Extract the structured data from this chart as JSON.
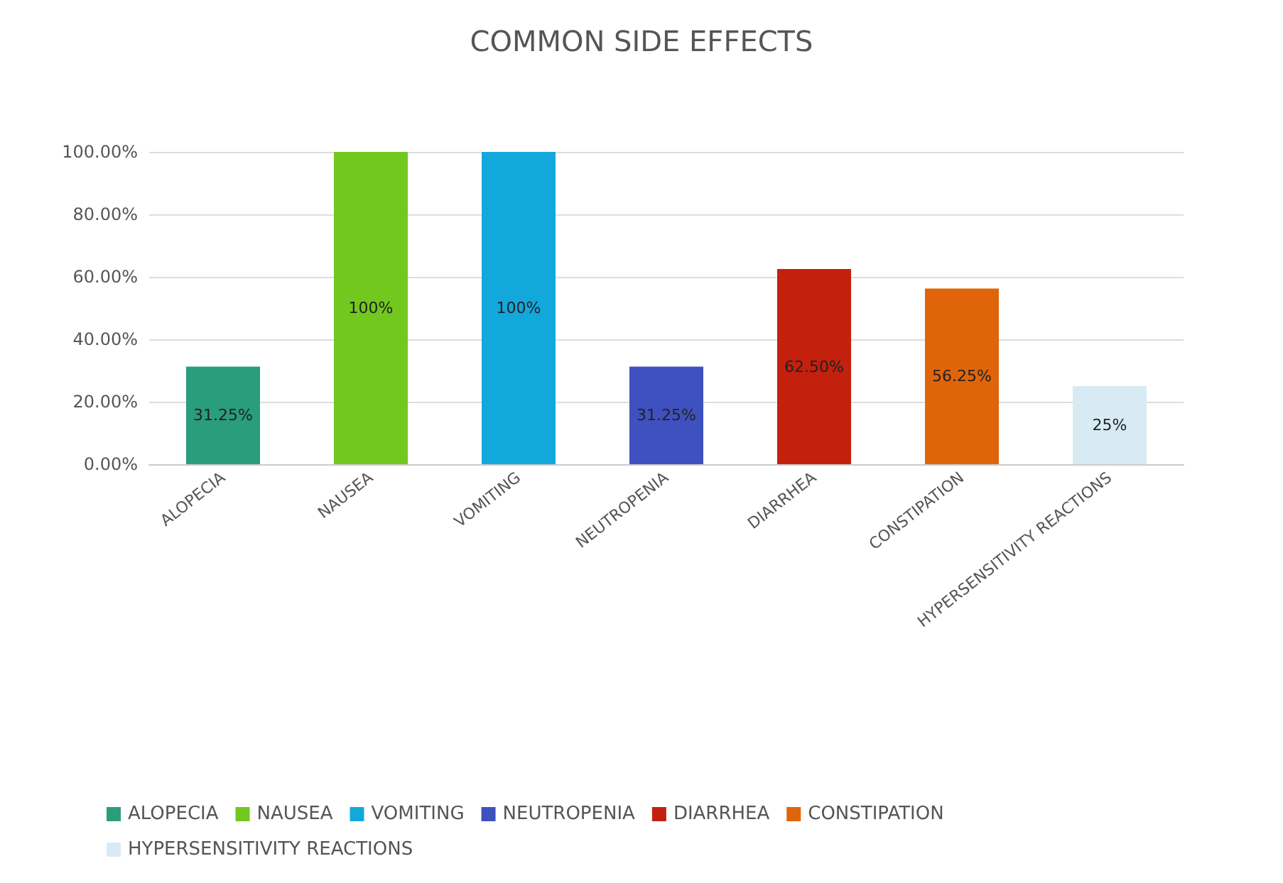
{
  "chart_data": {
    "type": "bar",
    "title": "COMMON SIDE EFFECTS",
    "stacked": true,
    "categories": [
      "ALOPECIA",
      "NAUSEA",
      "VOMITING",
      "NEUTROPENIA",
      "DIARRHEA",
      "CONSTIPATION",
      "HYPERSENSITIVITY REACTIONS"
    ],
    "series": [
      {
        "name": "ALOPECIA",
        "color": "#2a9d7c",
        "values": [
          31.25,
          null,
          null,
          null,
          null,
          null,
          null
        ],
        "value_labels": [
          "31.25%",
          null,
          null,
          null,
          null,
          null,
          null
        ]
      },
      {
        "name": "NAUSEA",
        "color": "#72c81e",
        "values": [
          null,
          100,
          null,
          null,
          null,
          null,
          null
        ],
        "value_labels": [
          null,
          "100%",
          null,
          null,
          null,
          null,
          null
        ]
      },
      {
        "name": "VOMITING",
        "color": "#12a8dc",
        "values": [
          null,
          null,
          100,
          null,
          null,
          null,
          null
        ],
        "value_labels": [
          null,
          null,
          "100%",
          null,
          null,
          null,
          null
        ]
      },
      {
        "name": "NEUTROPENIA",
        "color": "#3f51bf",
        "values": [
          null,
          null,
          null,
          31.25,
          null,
          null,
          null
        ],
        "value_labels": [
          null,
          null,
          null,
          "31.25%",
          null,
          null,
          null
        ]
      },
      {
        "name": "DIARRHEA",
        "color": "#c4200e",
        "values": [
          null,
          null,
          null,
          null,
          62.5,
          null,
          null
        ],
        "value_labels": [
          null,
          null,
          null,
          null,
          "62.50%",
          null,
          null
        ]
      },
      {
        "name": "CONSTIPATION",
        "color": "#e0650a",
        "values": [
          null,
          null,
          null,
          null,
          null,
          56.25,
          null
        ],
        "value_labels": [
          null,
          null,
          null,
          null,
          null,
          "56.25%",
          null
        ]
      },
      {
        "name": "HYPERSENSITIVITY REACTIONS",
        "color": "#d8ebf5",
        "values": [
          null,
          null,
          null,
          null,
          null,
          null,
          25
        ],
        "value_labels": [
          null,
          null,
          null,
          null,
          null,
          null,
          "25%"
        ]
      }
    ],
    "ylim": [
      0,
      100
    ],
    "yticks": [
      {
        "value": 0,
        "label": "0.00%"
      },
      {
        "value": 20,
        "label": "20.00%"
      },
      {
        "value": 40,
        "label": "40.00%"
      },
      {
        "value": 60,
        "label": "60.00%"
      },
      {
        "value": 80,
        "label": "80.00%"
      },
      {
        "value": 100,
        "label": "100.00%"
      }
    ],
    "grid": "y",
    "legend": "bottom"
  }
}
